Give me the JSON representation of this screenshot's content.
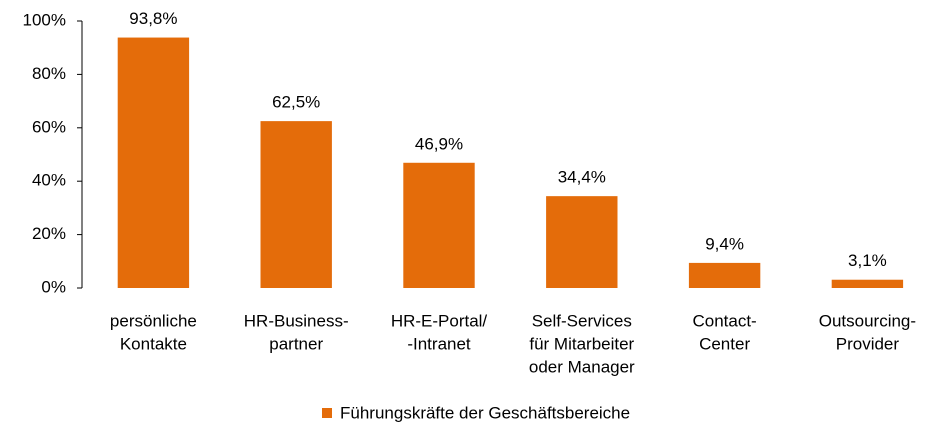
{
  "chart_data": {
    "type": "bar",
    "categories": [
      [
        "persönliche",
        "Kontakte"
      ],
      [
        "HR-Business-",
        "partner"
      ],
      [
        "HR-E-Portal/",
        "-Intranet"
      ],
      [
        "Self-Services",
        "für Mitarbeiter",
        "oder Manager"
      ],
      [
        "Contact-",
        "Center"
      ],
      [
        "Outsourcing-",
        "Provider"
      ]
    ],
    "series": [
      {
        "name": "Führungskräfte der Geschäftsbereiche",
        "color": "#e46c0a",
        "values": [
          93.8,
          62.5,
          46.9,
          34.4,
          9.4,
          3.1
        ],
        "value_labels": [
          "93,8%",
          "62,5%",
          "46,9%",
          "34,4%",
          "9,4%",
          "3,1%"
        ]
      }
    ],
    "ylim": [
      0,
      100
    ],
    "yticks": [
      {
        "value": 0,
        "label": "0%"
      },
      {
        "value": 20,
        "label": "20%"
      },
      {
        "value": 40,
        "label": "40%"
      },
      {
        "value": 60,
        "label": "60%"
      },
      {
        "value": 80,
        "label": "80%"
      },
      {
        "value": 100,
        "label": "100%"
      }
    ],
    "grid": false,
    "legend": "bottom"
  }
}
